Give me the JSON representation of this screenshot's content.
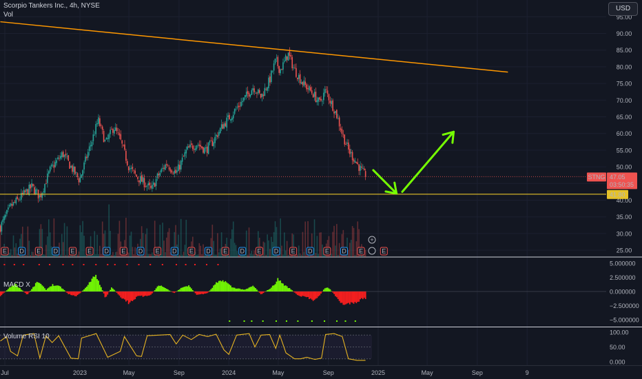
{
  "header": {
    "symbol_line": "Scorpio Tankers Inc., 4h, NYSE",
    "volume_label": "Vol",
    "currency_button": "USD",
    "macd_label": "MACD X",
    "rsi_label": "Volume RSI 10"
  },
  "price_badges": {
    "ticker": "STNG",
    "last_price": "47.05",
    "countdown": "03:50:35",
    "support_level": "41.80"
  },
  "colors": {
    "background": "#131722",
    "up": "#26a69a",
    "down": "#ef5350",
    "trendline": "#ff9800",
    "support_line": "#e6c229",
    "arrow": "#76ff03",
    "macd_pos": "#76ff03",
    "macd_neg": "#ff1f1f",
    "rsi_line": "#e6b422",
    "last_price_line": "#ef5350"
  },
  "event_markers": [
    "E",
    "D",
    "E",
    "D",
    "E",
    "E",
    "D",
    "E",
    "D",
    "E",
    "D",
    "E",
    "D",
    "E",
    "D",
    "E",
    "D",
    "E",
    "D",
    "E",
    "D",
    "E"
  ],
  "chart_data": [
    {
      "type": "candlestick",
      "title": "Scorpio Tankers Inc., 4h, NYSE",
      "ylabel": "USD",
      "ylim": [
        25,
        95
      ],
      "y_ticks": [
        "95.00",
        "90.00",
        "85.00",
        "80.00",
        "75.00",
        "70.00",
        "65.00",
        "60.00",
        "55.00",
        "50.00",
        "45.00",
        "40.00",
        "35.00",
        "30.00",
        "25.00"
      ],
      "x_ticks": [
        "Jul",
        "2023",
        "May",
        "Sep",
        "2024",
        "May",
        "Sep",
        "2025",
        "May",
        "Sep",
        "9"
      ],
      "x_tick_dates": [
        "2022-07-01",
        "2023-01-01",
        "2023-05-01",
        "2023-09-01",
        "2024-01-01",
        "2024-05-01",
        "2024-09-01",
        "2025-01-01",
        "2025-05-01",
        "2025-09-01",
        "2026-01-01"
      ],
      "close_path": [
        {
          "date": "2022-06-20",
          "close": 32
        },
        {
          "date": "2022-07-15",
          "close": 38
        },
        {
          "date": "2022-08-10",
          "close": 41
        },
        {
          "date": "2022-09-05",
          "close": 44
        },
        {
          "date": "2022-09-25",
          "close": 41
        },
        {
          "date": "2022-10-20",
          "close": 49
        },
        {
          "date": "2022-11-20",
          "close": 54
        },
        {
          "date": "2022-12-10",
          "close": 50
        },
        {
          "date": "2022-12-31",
          "close": 46
        },
        {
          "date": "2023-01-15",
          "close": 52
        },
        {
          "date": "2023-02-05",
          "close": 60
        },
        {
          "date": "2023-02-15",
          "close": 64
        },
        {
          "date": "2023-03-05",
          "close": 57
        },
        {
          "date": "2023-03-25",
          "close": 62
        },
        {
          "date": "2023-04-10",
          "close": 58
        },
        {
          "date": "2023-05-01",
          "close": 50
        },
        {
          "date": "2023-05-20",
          "close": 47
        },
        {
          "date": "2023-06-10",
          "close": 45
        },
        {
          "date": "2023-06-25",
          "close": 43
        },
        {
          "date": "2023-07-10",
          "close": 47
        },
        {
          "date": "2023-08-01",
          "close": 51
        },
        {
          "date": "2023-08-25",
          "close": 48
        },
        {
          "date": "2023-09-20",
          "close": 55
        },
        {
          "date": "2023-10-15",
          "close": 57
        },
        {
          "date": "2023-11-05",
          "close": 55
        },
        {
          "date": "2023-11-20",
          "close": 57
        },
        {
          "date": "2023-12-15",
          "close": 62
        },
        {
          "date": "2024-01-10",
          "close": 66
        },
        {
          "date": "2024-02-05",
          "close": 70
        },
        {
          "date": "2024-03-01",
          "close": 74
        },
        {
          "date": "2024-03-20",
          "close": 71
        },
        {
          "date": "2024-04-10",
          "close": 76
        },
        {
          "date": "2024-04-25",
          "close": 82
        },
        {
          "date": "2024-05-05",
          "close": 79
        },
        {
          "date": "2024-05-15",
          "close": 81
        },
        {
          "date": "2024-05-25",
          "close": 84
        },
        {
          "date": "2024-06-10",
          "close": 79
        },
        {
          "date": "2024-07-01",
          "close": 75
        },
        {
          "date": "2024-07-25",
          "close": 72
        },
        {
          "date": "2024-08-10",
          "close": 69
        },
        {
          "date": "2024-08-25",
          "close": 73
        },
        {
          "date": "2024-09-05",
          "close": 70
        },
        {
          "date": "2024-09-20",
          "close": 66
        },
        {
          "date": "2024-10-05",
          "close": 60
        },
        {
          "date": "2024-10-20",
          "close": 55
        },
        {
          "date": "2024-11-05",
          "close": 52
        },
        {
          "date": "2024-11-20",
          "close": 49
        },
        {
          "date": "2024-12-01",
          "close": 47.05
        }
      ],
      "trendline": [
        {
          "date": "2022-06-20",
          "price": 93.5
        },
        {
          "date": "2025-11-15",
          "price": 78.4
        }
      ],
      "support_line": {
        "price": 41.8
      },
      "projection_arrows": [
        {
          "from": {
            "date": "2024-12-20",
            "price": 49
          },
          "to": {
            "date": "2025-02-15",
            "price": 42
          }
        },
        {
          "from": {
            "date": "2025-03-01",
            "price": 42.5
          },
          "to": {
            "date": "2025-07-05",
            "price": 60.5
          }
        }
      ],
      "last_price": 47.05
    },
    {
      "type": "bar",
      "title": "MACD X",
      "ylim": [
        -6,
        6
      ],
      "y_ticks": [
        "5.000000",
        "2.500000",
        "0.000000",
        "−2.500000",
        "−5.000000"
      ],
      "histogram": [
        {
          "date": "2022-06-20",
          "value": -0.8
        },
        {
          "date": "2022-07-10",
          "value": 0.5
        },
        {
          "date": "2022-07-25",
          "value": 1.4
        },
        {
          "date": "2022-08-10",
          "value": 0.4
        },
        {
          "date": "2022-08-25",
          "value": -0.6
        },
        {
          "date": "2022-09-20",
          "value": 1.8
        },
        {
          "date": "2022-10-10",
          "value": 0.3
        },
        {
          "date": "2022-10-25",
          "value": 1.2
        },
        {
          "date": "2022-11-15",
          "value": 0.8
        },
        {
          "date": "2022-12-05",
          "value": -0.5
        },
        {
          "date": "2022-12-25",
          "value": -0.8
        },
        {
          "date": "2023-01-20",
          "value": 1.0
        },
        {
          "date": "2023-02-05",
          "value": 3.0
        },
        {
          "date": "2023-02-15",
          "value": 2.0
        },
        {
          "date": "2023-03-05",
          "value": -1.2
        },
        {
          "date": "2023-03-20",
          "value": 0.8
        },
        {
          "date": "2023-04-10",
          "value": -0.9
        },
        {
          "date": "2023-05-01",
          "value": -2.0
        },
        {
          "date": "2023-05-25",
          "value": -0.8
        },
        {
          "date": "2023-06-10",
          "value": -0.9
        },
        {
          "date": "2023-06-25",
          "value": -0.5
        },
        {
          "date": "2023-07-15",
          "value": 1.2
        },
        {
          "date": "2023-08-01",
          "value": 0.5
        },
        {
          "date": "2023-08-20",
          "value": -0.3
        },
        {
          "date": "2023-09-10",
          "value": 0.8
        },
        {
          "date": "2023-09-25",
          "value": 1.0
        },
        {
          "date": "2023-10-15",
          "value": -0.6
        },
        {
          "date": "2023-11-10",
          "value": -0.3
        },
        {
          "date": "2023-11-30",
          "value": 1.4
        },
        {
          "date": "2023-12-20",
          "value": 2.0
        },
        {
          "date": "2024-01-10",
          "value": 0.7
        },
        {
          "date": "2024-02-10",
          "value": 0.3
        },
        {
          "date": "2024-03-01",
          "value": 1.0
        },
        {
          "date": "2024-03-20",
          "value": -0.5
        },
        {
          "date": "2024-04-15",
          "value": 0.7
        },
        {
          "date": "2024-05-01",
          "value": 2.2
        },
        {
          "date": "2024-05-15",
          "value": 1.2
        },
        {
          "date": "2024-06-01",
          "value": 0.4
        },
        {
          "date": "2024-06-20",
          "value": -0.8
        },
        {
          "date": "2024-07-10",
          "value": -1.0
        },
        {
          "date": "2024-07-25",
          "value": -1.5
        },
        {
          "date": "2024-08-10",
          "value": -0.8
        },
        {
          "date": "2024-08-25",
          "value": 0.8
        },
        {
          "date": "2024-09-05",
          "value": 0.4
        },
        {
          "date": "2024-09-25",
          "value": -1.4
        },
        {
          "date": "2024-10-10",
          "value": -2.5
        },
        {
          "date": "2024-10-25",
          "value": -2.0
        },
        {
          "date": "2024-11-10",
          "value": -1.8
        },
        {
          "date": "2024-11-25",
          "value": -1.2
        },
        {
          "date": "2024-12-01",
          "value": -1.2
        }
      ]
    },
    {
      "type": "line",
      "title": "Volume RSI 10",
      "ylim": [
        0,
        100
      ],
      "y_ticks": [
        "100.00",
        "50.00",
        "0.000"
      ],
      "values": [
        {
          "date": "2022-06-20",
          "value": 70
        },
        {
          "date": "2022-07-05",
          "value": 85
        },
        {
          "date": "2022-07-15",
          "value": 35
        },
        {
          "date": "2022-08-01",
          "value": 20
        },
        {
          "date": "2022-08-15",
          "value": 90
        },
        {
          "date": "2022-09-10",
          "value": 95
        },
        {
          "date": "2022-09-25",
          "value": 12
        },
        {
          "date": "2022-10-10",
          "value": 88
        },
        {
          "date": "2022-10-25",
          "value": 65
        },
        {
          "date": "2022-11-10",
          "value": 88
        },
        {
          "date": "2022-12-10",
          "value": 12
        },
        {
          "date": "2022-12-28",
          "value": 10
        },
        {
          "date": "2023-01-05",
          "value": 80
        },
        {
          "date": "2023-02-10",
          "value": 95
        },
        {
          "date": "2023-03-10",
          "value": 15
        },
        {
          "date": "2023-04-10",
          "value": 35
        },
        {
          "date": "2023-04-20",
          "value": 85
        },
        {
          "date": "2023-05-20",
          "value": 20
        },
        {
          "date": "2023-06-01",
          "value": 18
        },
        {
          "date": "2023-06-15",
          "value": 88
        },
        {
          "date": "2023-08-10",
          "value": 92
        },
        {
          "date": "2023-08-25",
          "value": 60
        },
        {
          "date": "2023-09-10",
          "value": 90
        },
        {
          "date": "2023-10-01",
          "value": 75
        },
        {
          "date": "2023-10-20",
          "value": 92
        },
        {
          "date": "2023-11-10",
          "value": 85
        },
        {
          "date": "2023-12-01",
          "value": 93
        },
        {
          "date": "2023-12-20",
          "value": 40
        },
        {
          "date": "2024-01-01",
          "value": 25
        },
        {
          "date": "2024-01-20",
          "value": 90
        },
        {
          "date": "2024-02-20",
          "value": 95
        },
        {
          "date": "2024-03-05",
          "value": 50
        },
        {
          "date": "2024-03-20",
          "value": 90
        },
        {
          "date": "2024-04-10",
          "value": 92
        },
        {
          "date": "2024-04-25",
          "value": 45
        },
        {
          "date": "2024-05-05",
          "value": 90
        },
        {
          "date": "2024-05-20",
          "value": 30
        },
        {
          "date": "2024-06-10",
          "value": 10
        },
        {
          "date": "2024-06-25",
          "value": 10
        },
        {
          "date": "2024-07-10",
          "value": 15
        },
        {
          "date": "2024-07-30",
          "value": 8
        },
        {
          "date": "2024-08-15",
          "value": 12
        },
        {
          "date": "2024-08-25",
          "value": 92
        },
        {
          "date": "2024-09-15",
          "value": 95
        },
        {
          "date": "2024-10-05",
          "value": 85
        },
        {
          "date": "2024-10-20",
          "value": 10
        },
        {
          "date": "2024-11-10",
          "value": 5
        },
        {
          "date": "2024-12-01",
          "value": 5
        }
      ]
    }
  ]
}
